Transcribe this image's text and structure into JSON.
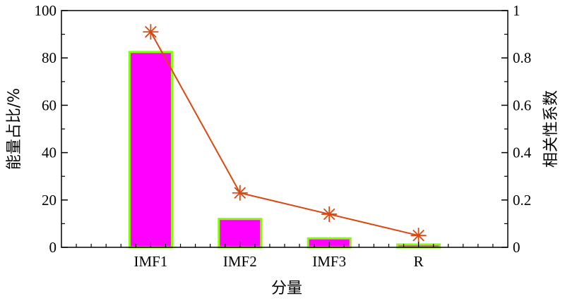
{
  "chart_data": {
    "type": "bar+line",
    "categories": [
      "IMF1",
      "IMF2",
      "IMF3",
      "R"
    ],
    "series": [
      {
        "type": "bar",
        "axis": "left",
        "values": [
          82.5,
          12,
          3.8,
          1.2
        ],
        "color": "#ff00ff",
        "edgecolor": "#7fff00"
      },
      {
        "type": "line",
        "axis": "right",
        "marker": "asterisk",
        "values": [
          0.91,
          0.23,
          0.14,
          0.05
        ],
        "color": "#d9480f"
      }
    ],
    "xlabel": "分量",
    "ylabel": "能量占比/%",
    "y2label": "相关性系数",
    "ylim": [
      0,
      100
    ],
    "y2lim": [
      0,
      1
    ],
    "yticks": [
      0,
      20,
      40,
      60,
      80,
      100
    ],
    "y2ticks": [
      "0",
      "0.2",
      "0.4",
      "0.6",
      "0.8",
      "1"
    ],
    "grid": false
  }
}
